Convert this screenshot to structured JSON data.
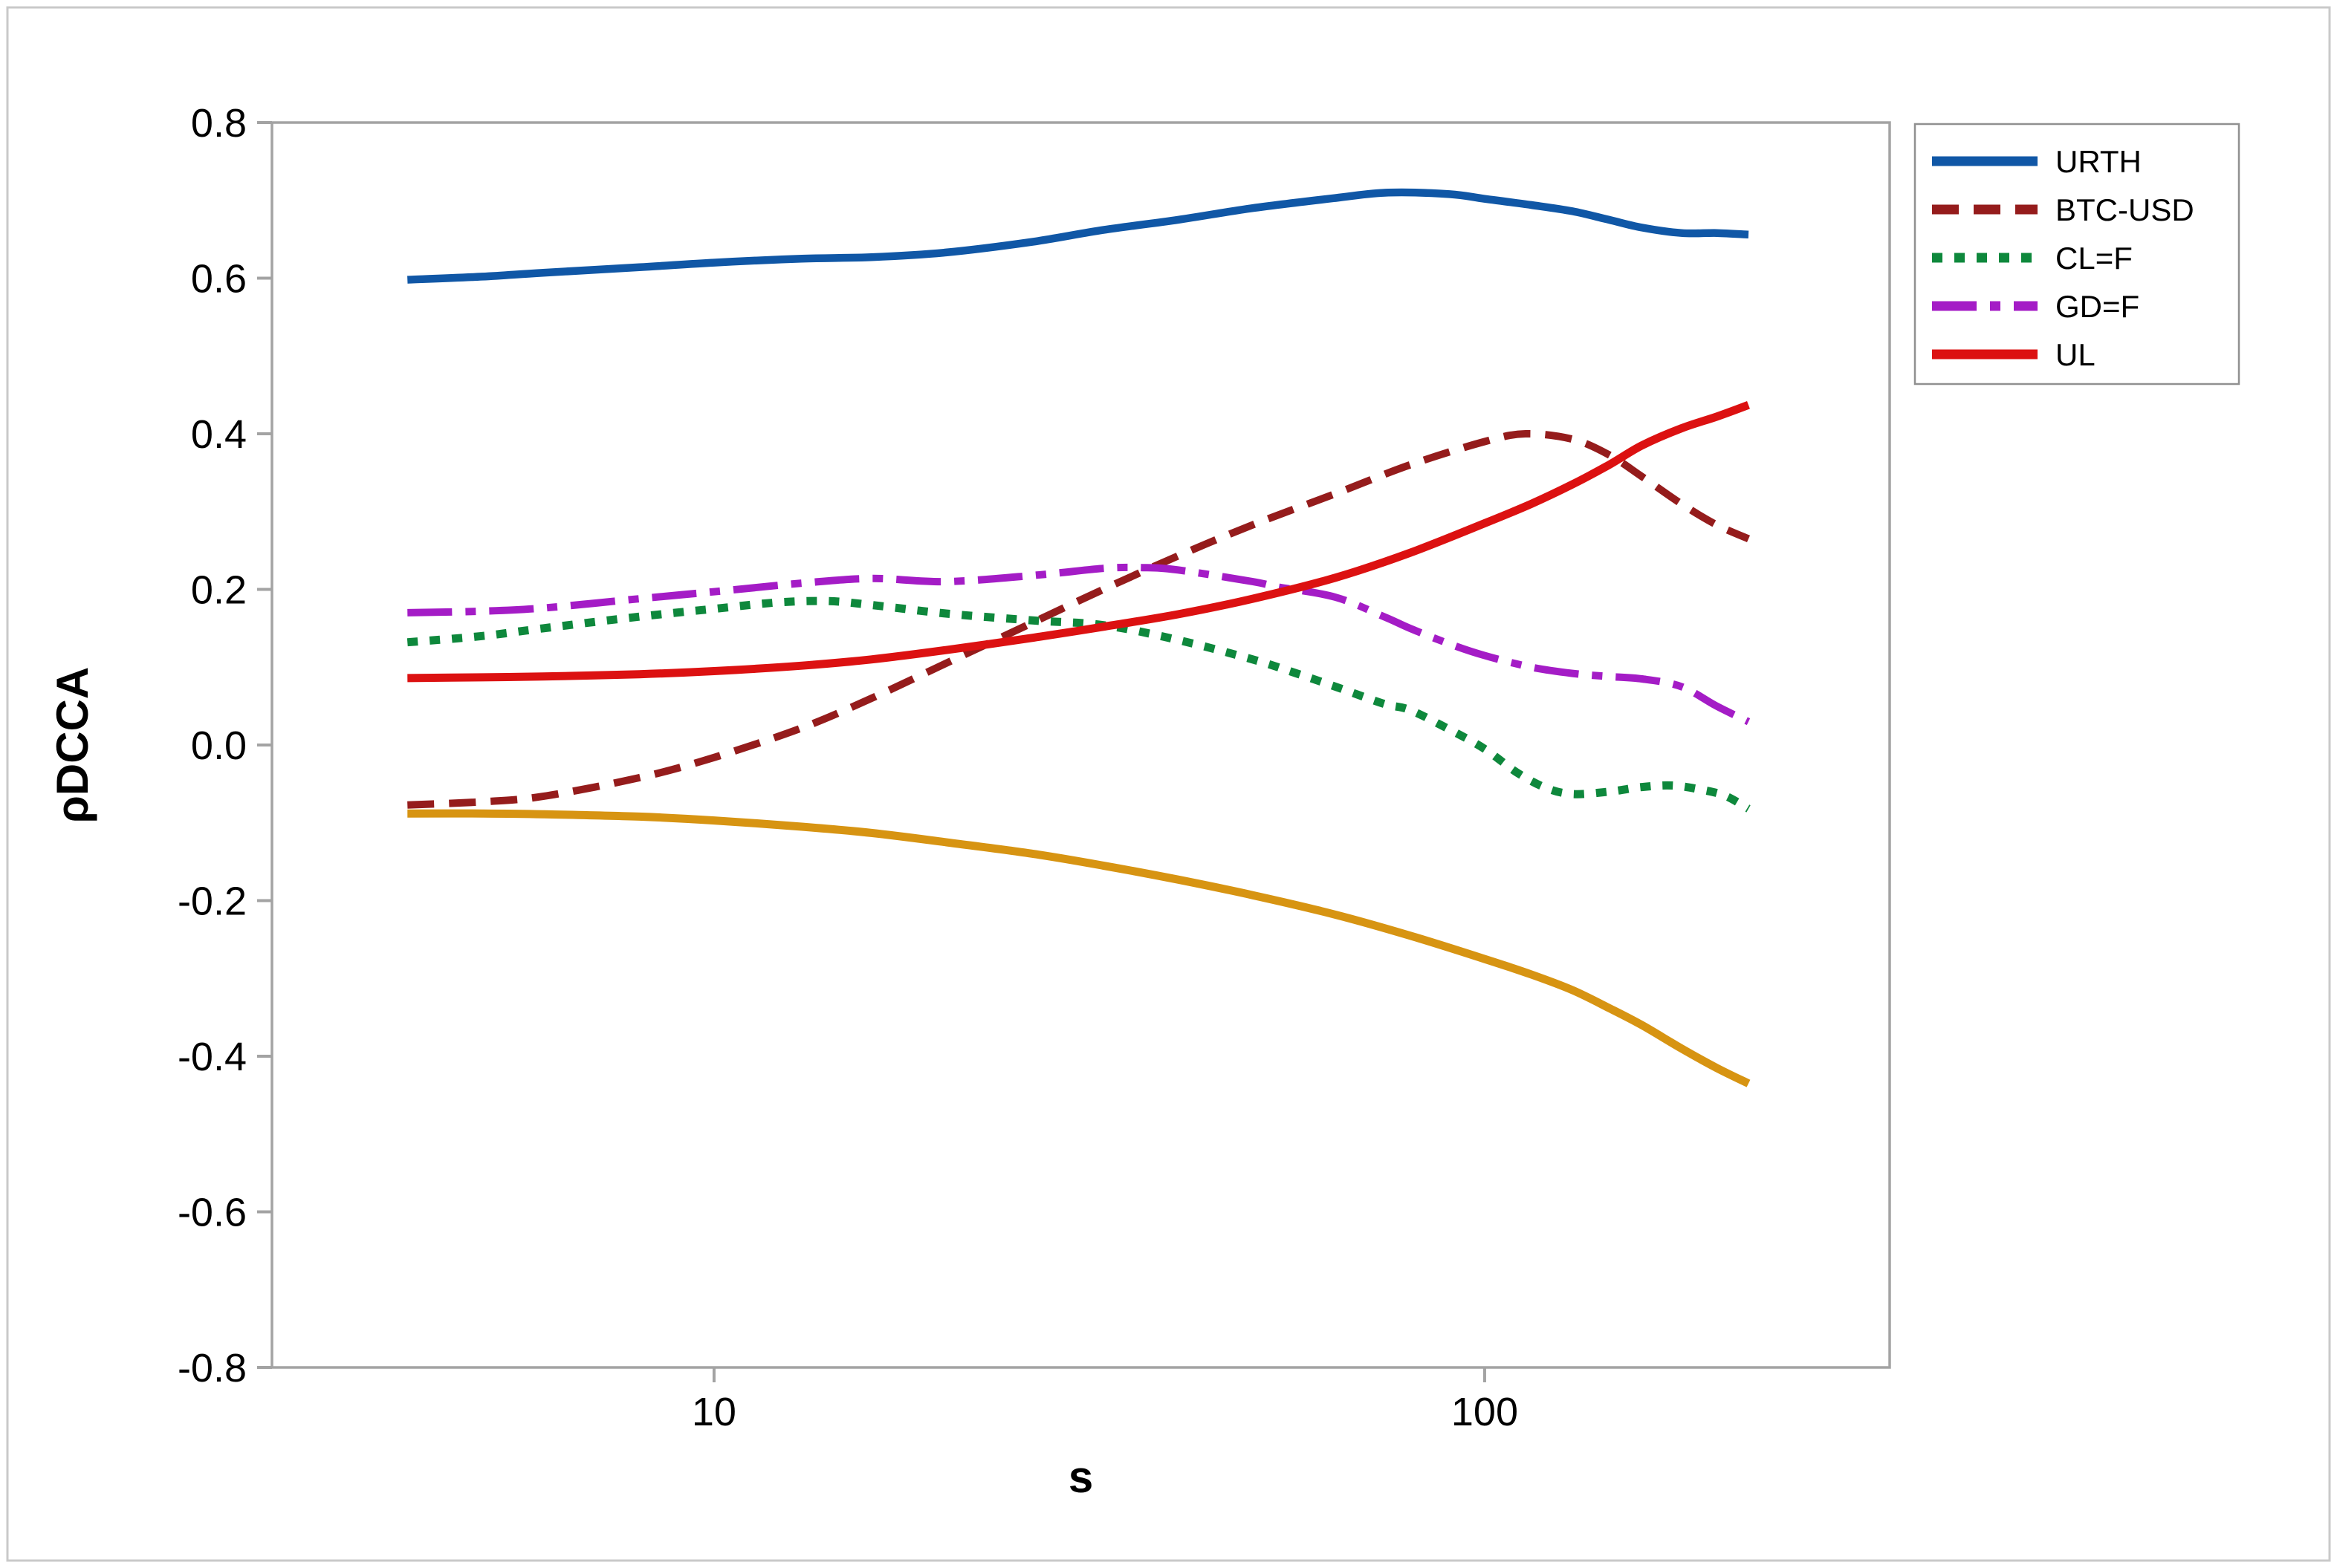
{
  "figure": {
    "background": "#ffffff",
    "outer_border_color": "#c9c9c9",
    "axis_color": "#a3a3a3",
    "tick_label_color": "#000000",
    "legend_border_color": "#909090"
  },
  "chart_data": {
    "type": "line",
    "title": "",
    "xlabel": "s",
    "ylabel": "ρDCCA",
    "x_scale": "log10",
    "grid": false,
    "legend_position": "outside-top-right",
    "x_ticks": [
      {
        "value": 10,
        "label": "10"
      },
      {
        "value": 100,
        "label": "100"
      }
    ],
    "x_domain_log10": [
      0.4263,
      2.5256
    ],
    "ylim": [
      -0.8,
      0.8
    ],
    "y_ticks": [
      {
        "value": 0.8,
        "label": "0.8"
      },
      {
        "value": 0.6,
        "label": "0.6"
      },
      {
        "value": 0.4,
        "label": "0.4"
      },
      {
        "value": 0.2,
        "label": "0.2"
      },
      {
        "value": 0.0,
        "label": "0.0"
      },
      {
        "value": -0.2,
        "label": "-0.2"
      },
      {
        "value": -0.4,
        "label": "-0.4"
      },
      {
        "value": -0.6,
        "label": "-0.6"
      },
      {
        "value": -0.8,
        "label": "-0.8"
      }
    ],
    "series": [
      {
        "id": "urth",
        "name": "URTH",
        "color": "#1057a6",
        "dash": "",
        "width": 10.5,
        "in_legend": true,
        "points": [
          [
            4,
            0.598
          ],
          [
            5,
            0.602
          ],
          [
            6,
            0.607
          ],
          [
            8,
            0.614
          ],
          [
            10,
            0.62
          ],
          [
            13,
            0.625
          ],
          [
            16,
            0.627
          ],
          [
            20,
            0.633
          ],
          [
            26,
            0.647
          ],
          [
            32,
            0.662
          ],
          [
            40,
            0.675
          ],
          [
            50,
            0.69
          ],
          [
            64,
            0.703
          ],
          [
            75,
            0.71
          ],
          [
            90,
            0.708
          ],
          [
            100,
            0.702
          ],
          [
            115,
            0.694
          ],
          [
            130,
            0.686
          ],
          [
            145,
            0.675
          ],
          [
            160,
            0.665
          ],
          [
            180,
            0.658
          ],
          [
            200,
            0.658
          ],
          [
            220,
            0.656
          ]
        ]
      },
      {
        "id": "btc-usd",
        "name": "BTC-USD",
        "color": "#951c1c",
        "dash": "36 20",
        "width": 10,
        "in_legend": true,
        "points": [
          [
            4,
            -0.077
          ],
          [
            5,
            -0.073
          ],
          [
            6,
            -0.066
          ],
          [
            8,
            -0.042
          ],
          [
            10,
            -0.016
          ],
          [
            13,
            0.022
          ],
          [
            16,
            0.06
          ],
          [
            20,
            0.105
          ],
          [
            26,
            0.158
          ],
          [
            32,
            0.2
          ],
          [
            40,
            0.243
          ],
          [
            50,
            0.283
          ],
          [
            64,
            0.323
          ],
          [
            80,
            0.36
          ],
          [
            100,
            0.39
          ],
          [
            113,
            0.4
          ],
          [
            130,
            0.393
          ],
          [
            145,
            0.373
          ],
          [
            160,
            0.345
          ],
          [
            180,
            0.31
          ],
          [
            200,
            0.283
          ],
          [
            220,
            0.265
          ]
        ]
      },
      {
        "id": "cl-f",
        "name": "CL=F",
        "color": "#0e883c",
        "dash": "14 16",
        "width": 11,
        "in_legend": true,
        "points": [
          [
            4,
            0.132
          ],
          [
            5,
            0.14
          ],
          [
            6,
            0.15
          ],
          [
            8,
            0.165
          ],
          [
            10,
            0.175
          ],
          [
            12,
            0.183
          ],
          [
            14,
            0.185
          ],
          [
            16,
            0.18
          ],
          [
            20,
            0.169
          ],
          [
            26,
            0.16
          ],
          [
            32,
            0.154
          ],
          [
            40,
            0.135
          ],
          [
            50,
            0.11
          ],
          [
            57,
            0.092
          ],
          [
            64,
            0.075
          ],
          [
            74,
            0.053
          ],
          [
            80,
            0.045
          ],
          [
            90,
            0.02
          ],
          [
            100,
            -0.005
          ],
          [
            110,
            -0.035
          ],
          [
            120,
            -0.055
          ],
          [
            130,
            -0.063
          ],
          [
            145,
            -0.06
          ],
          [
            160,
            -0.054
          ],
          [
            175,
            -0.052
          ],
          [
            190,
            -0.057
          ],
          [
            205,
            -0.065
          ],
          [
            220,
            -0.082
          ]
        ]
      },
      {
        "id": "gd-f",
        "name": "GD=F",
        "color": "#a41cc6",
        "dash": "60 18 14 18",
        "width": 10,
        "in_legend": true,
        "points": [
          [
            4,
            0.17
          ],
          [
            5,
            0.172
          ],
          [
            6,
            0.176
          ],
          [
            8,
            0.188
          ],
          [
            10,
            0.197
          ],
          [
            13,
            0.208
          ],
          [
            16,
            0.214
          ],
          [
            20,
            0.21
          ],
          [
            26,
            0.218
          ],
          [
            32,
            0.227
          ],
          [
            36,
            0.228
          ],
          [
            40,
            0.225
          ],
          [
            50,
            0.21
          ],
          [
            54,
            0.203
          ],
          [
            64,
            0.19
          ],
          [
            74,
            0.165
          ],
          [
            80,
            0.15
          ],
          [
            90,
            0.13
          ],
          [
            100,
            0.115
          ],
          [
            115,
            0.1
          ],
          [
            130,
            0.092
          ],
          [
            145,
            0.088
          ],
          [
            160,
            0.085
          ],
          [
            180,
            0.075
          ],
          [
            200,
            0.05
          ],
          [
            220,
            0.03
          ]
        ]
      },
      {
        "id": "ul",
        "name": "UL",
        "color": "#dc1111",
        "dash": "",
        "width": 11,
        "in_legend": true,
        "points": [
          [
            4,
            0.086
          ],
          [
            5,
            0.087
          ],
          [
            6,
            0.088
          ],
          [
            8,
            0.091
          ],
          [
            10,
            0.095
          ],
          [
            13,
            0.102
          ],
          [
            16,
            0.11
          ],
          [
            20,
            0.122
          ],
          [
            26,
            0.138
          ],
          [
            32,
            0.152
          ],
          [
            40,
            0.168
          ],
          [
            50,
            0.188
          ],
          [
            64,
            0.215
          ],
          [
            80,
            0.247
          ],
          [
            100,
            0.285
          ],
          [
            115,
            0.31
          ],
          [
            130,
            0.335
          ],
          [
            145,
            0.36
          ],
          [
            160,
            0.385
          ],
          [
            180,
            0.407
          ],
          [
            200,
            0.422
          ],
          [
            220,
            0.437
          ]
        ]
      },
      {
        "id": "unlabeled-orange",
        "name": "",
        "color": "#d79412",
        "dash": "",
        "width": 11,
        "in_legend": false,
        "points": [
          [
            4,
            -0.088
          ],
          [
            5,
            -0.088
          ],
          [
            6,
            -0.089
          ],
          [
            8,
            -0.092
          ],
          [
            10,
            -0.097
          ],
          [
            13,
            -0.105
          ],
          [
            16,
            -0.113
          ],
          [
            20,
            -0.125
          ],
          [
            26,
            -0.14
          ],
          [
            32,
            -0.155
          ],
          [
            40,
            -0.173
          ],
          [
            50,
            -0.193
          ],
          [
            64,
            -0.218
          ],
          [
            80,
            -0.245
          ],
          [
            100,
            -0.275
          ],
          [
            115,
            -0.295
          ],
          [
            130,
            -0.315
          ],
          [
            145,
            -0.338
          ],
          [
            160,
            -0.36
          ],
          [
            180,
            -0.39
          ],
          [
            200,
            -0.415
          ],
          [
            220,
            -0.435
          ]
        ]
      }
    ]
  }
}
